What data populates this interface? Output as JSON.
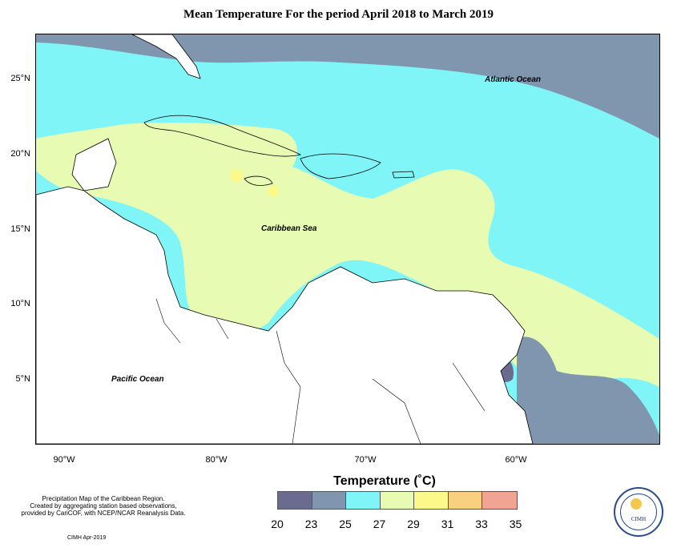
{
  "title": "Mean Temperature For the period April 2018 to March 2019",
  "axes": {
    "y_labels": [
      "25°N",
      "20°N",
      "15°N",
      "10°N",
      "5°N"
    ],
    "x_labels": [
      "90°W",
      "80°W",
      "70°W",
      "60°W"
    ]
  },
  "map_labels": {
    "atlantic": "Atlantic Ocean",
    "caribbean": "Caribbean Sea",
    "pacific": "Pacific Ocean"
  },
  "legend": {
    "title": "Temperature (˚C)",
    "values": [
      "20",
      "23",
      "25",
      "27",
      "29",
      "31",
      "33",
      "35"
    ],
    "colors": [
      "#6b6a8f",
      "#7f96ae",
      "#7ff5f8",
      "#e8fbb2",
      "#fbf98a",
      "#f9cf80",
      "#f2a494"
    ]
  },
  "notes": {
    "line1": "Precipitation Map of the Caribbean Region.",
    "line2": "Created by aggregating station based observations,",
    "line3": "provided by CariCOF, with NCEP/NCAR Reanalysis Data.",
    "credit": "CIMH Apr-2019",
    "logo": "CIMH"
  }
}
